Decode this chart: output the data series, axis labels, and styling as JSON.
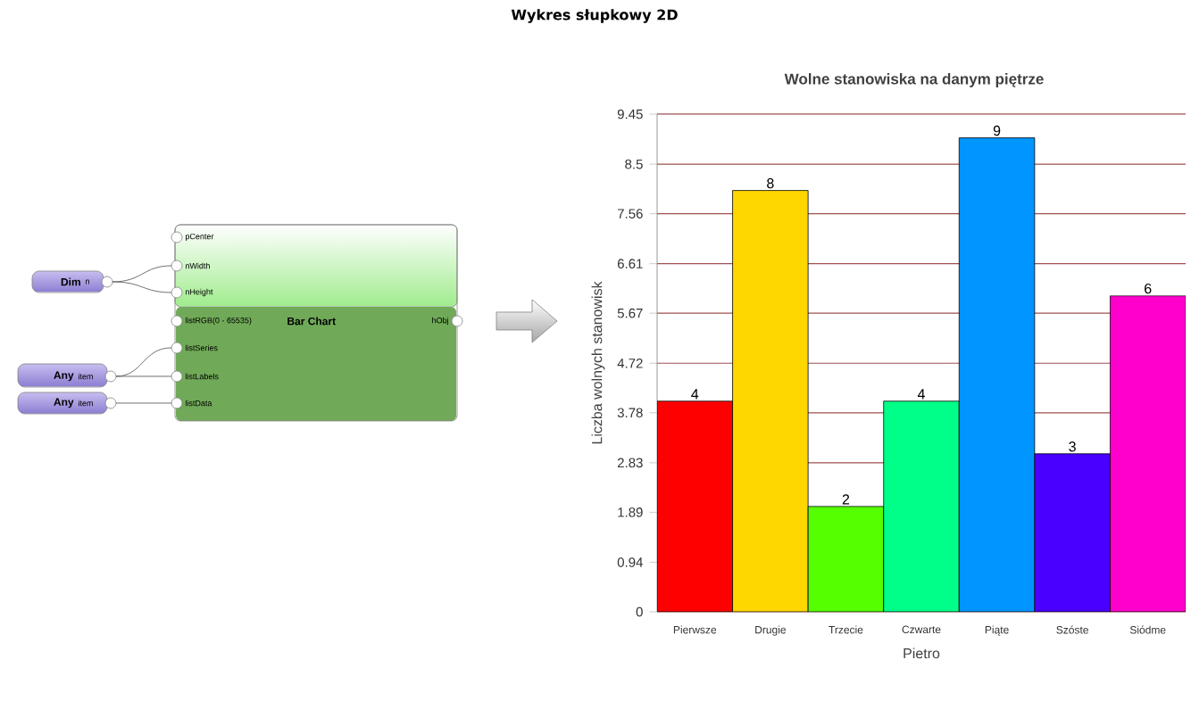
{
  "chart_data": {
    "type": "bar",
    "title": "Wolne stanowiska na danym piętrze",
    "xlabel": "Pietro",
    "ylabel": "Liczba wolnych stanowisk",
    "categories": [
      "Pierwsze",
      "Drugie",
      "Trzecie",
      "Czwarte",
      "Piąte",
      "Szóste",
      "Siódme"
    ],
    "values": [
      4,
      8,
      2,
      4,
      9,
      3,
      6
    ],
    "colors": [
      "#ff0000",
      "#ffd700",
      "#55ff00",
      "#00ff88",
      "#0095ff",
      "#4a00ff",
      "#ff00cc"
    ],
    "ylim": [
      0,
      9.45
    ],
    "yticks": [
      0,
      0.94,
      1.89,
      2.83,
      3.78,
      4.72,
      5.67,
      6.61,
      7.56,
      8.5,
      9.45
    ],
    "grid": "y",
    "data_labels": true,
    "annotations": [
      "Wykres słupkowy 2D",
      "pCenter",
      "nWidth",
      "nHeight",
      "listRGB(0 - 65535)",
      "Bar Chart",
      "hObj",
      "listSeries",
      "listLabels",
      "listData",
      "Dim",
      "n",
      "Any",
      "item",
      "Any",
      "item"
    ]
  }
}
